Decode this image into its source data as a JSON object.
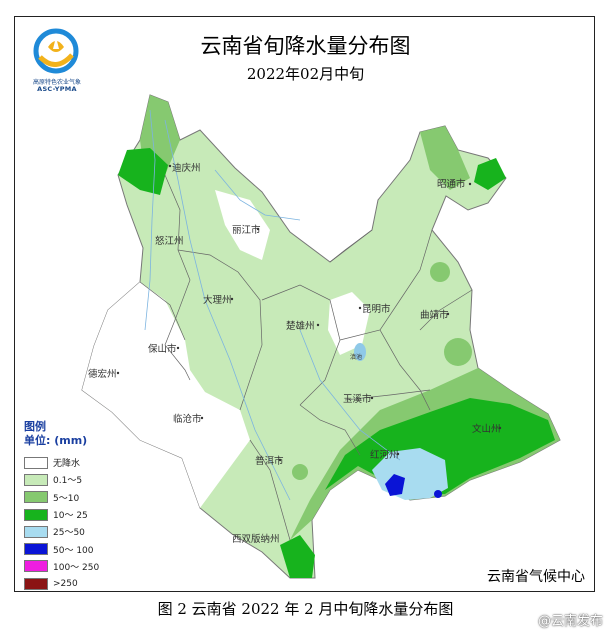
{
  "header": {
    "title": "云南省旬降水量分布图",
    "subtitle": "2022年02月中旬"
  },
  "logo": {
    "org_text": "高原特色农业气象",
    "abbr": "ASC-YPMA"
  },
  "legend": {
    "heading": "图例",
    "unit": "单位: (mm)",
    "items": [
      {
        "label": "无降水",
        "color": "#ffffff"
      },
      {
        "label": "0.1～5",
        "color": "#c7eab8"
      },
      {
        "label": "5～10",
        "color": "#86c970"
      },
      {
        "label": "10～ 25",
        "color": "#17b31d"
      },
      {
        "label": "25～50",
        "color": "#a8dcf0"
      },
      {
        "label": "50～ 100",
        "color": "#0a14d6"
      },
      {
        "label": "100～ 250",
        "color": "#ef1ee0"
      },
      {
        "label": ">250",
        "color": "#8b1414"
      }
    ]
  },
  "cities": {
    "diqing": "迪庆州",
    "lijiang": "丽江市",
    "nujiang": "怒江州",
    "zhaotong": "昭通市",
    "dali": "大理州",
    "chuxiong": "楚雄州",
    "kunming": "昆明市",
    "qujing": "曲靖市",
    "baoshan": "保山市",
    "dehong": "德宏州",
    "yuxi": "玉溪市",
    "lincang": "临沧市",
    "wenshan": "文山州",
    "honghe": "红河州",
    "puer": "普洱市",
    "xishuangbanna": "西双版纳州",
    "dianchi": "滇池"
  },
  "agency": "云南省气候中心",
  "caption": "图 2  云南省 2022 年 2 月中旬降水量分布图",
  "watermark": "@云南发布"
}
